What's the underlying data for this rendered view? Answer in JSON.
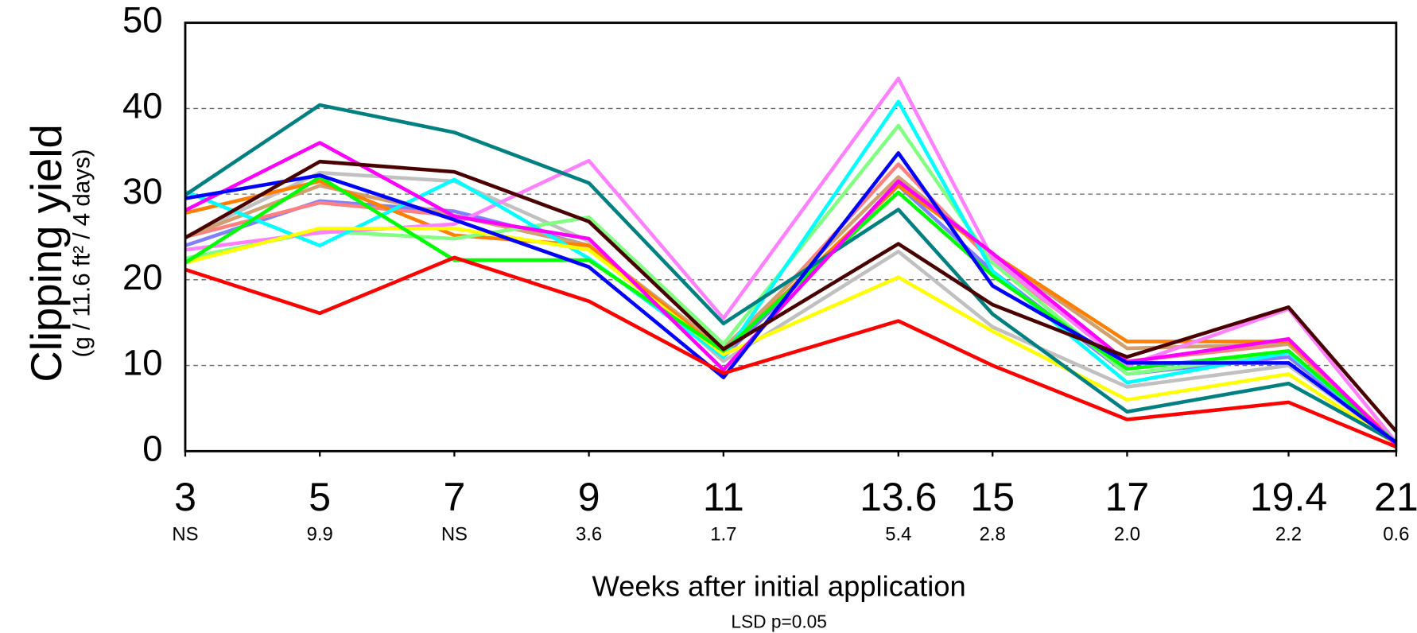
{
  "chart_data": {
    "type": "line",
    "y_label": "Clipping yield",
    "y_sublabel": "(g / 11.6 ft² / 4 days)",
    "x_label": "Weeks after initial application",
    "lsd_title": "LSD p=0.05",
    "lsd_values": [
      "NS",
      "9.9",
      "NS",
      "3.6",
      "1.7",
      "5.4",
      "2.8",
      "2.0",
      "2.2",
      "0.6"
    ],
    "x": [
      3,
      5,
      7,
      9,
      11,
      13.6,
      15,
      17,
      19.4,
      21
    ],
    "xlim": [
      3,
      21
    ],
    "xticks": [
      3,
      5,
      7,
      9,
      11,
      13.6,
      15,
      17,
      19.4,
      21
    ],
    "ylim": [
      0,
      50
    ],
    "yticks": [
      0,
      10,
      20,
      30,
      40,
      50
    ],
    "grid": true,
    "series": [
      {
        "color": "#c0c0c0",
        "values": [
          25.0,
          32.5,
          31.5,
          24.5,
          10.5,
          23.3,
          14.5,
          7.5,
          10.0,
          1.0
        ]
      },
      {
        "color": "#8080ff",
        "values": [
          24.0,
          29.2,
          28.0,
          24.0,
          11.0,
          31.0,
          21.0,
          9.0,
          11.0,
          1.0
        ]
      },
      {
        "color": "#ff8080",
        "values": [
          25.0,
          29.0,
          27.5,
          24.0,
          11.2,
          33.5,
          22.0,
          10.5,
          12.5,
          1.0
        ]
      },
      {
        "color": "#d2a06e",
        "values": [
          25.0,
          31.0,
          27.5,
          24.0,
          12.0,
          32.0,
          23.0,
          12.0,
          12.5,
          1.0
        ]
      },
      {
        "color": "#ff8000",
        "values": [
          27.8,
          31.5,
          25.2,
          24.0,
          11.5,
          31.0,
          23.0,
          12.8,
          12.8,
          1.0
        ]
      },
      {
        "color": "#80ff80",
        "values": [
          22.5,
          25.7,
          24.8,
          27.3,
          12.5,
          38.0,
          22.0,
          9.0,
          11.5,
          1.0
        ]
      },
      {
        "color": "#ff80ff",
        "values": [
          23.5,
          25.5,
          26.5,
          33.9,
          15.5,
          43.5,
          22.5,
          10.0,
          16.6,
          1.0
        ]
      },
      {
        "color": "#00ffff",
        "values": [
          30.3,
          24.0,
          31.7,
          22.5,
          11.0,
          40.8,
          21.0,
          8.0,
          11.5,
          1.0
        ]
      },
      {
        "color": "#ffff00",
        "values": [
          22.0,
          26.0,
          26.0,
          23.5,
          11.3,
          20.3,
          14.0,
          6.0,
          9.0,
          0.8
        ]
      },
      {
        "color": "#00ff00",
        "values": [
          22.0,
          32.0,
          22.3,
          22.3,
          11.7,
          30.2,
          20.5,
          9.6,
          11.7,
          1.0
        ]
      },
      {
        "color": "#008080",
        "values": [
          29.9,
          40.4,
          37.2,
          31.3,
          14.9,
          28.2,
          16.0,
          4.6,
          7.9,
          1.0
        ]
      },
      {
        "color": "#ff00ff",
        "values": [
          28.1,
          36.0,
          27.4,
          24.8,
          9.5,
          31.5,
          23.1,
          10.4,
          13.1,
          0.7
        ]
      },
      {
        "color": "#0000ff",
        "values": [
          29.5,
          32.2,
          27.0,
          21.5,
          8.6,
          34.8,
          19.3,
          10.3,
          10.3,
          1.0
        ]
      },
      {
        "color": "#4a0000",
        "values": [
          24.9,
          33.8,
          32.6,
          26.8,
          11.9,
          24.2,
          17.1,
          11.0,
          16.8,
          2.3
        ]
      },
      {
        "color": "#ff0000",
        "values": [
          21.2,
          16.1,
          22.6,
          17.5,
          9.1,
          15.2,
          10.0,
          3.7,
          5.7,
          0.5
        ]
      }
    ]
  }
}
